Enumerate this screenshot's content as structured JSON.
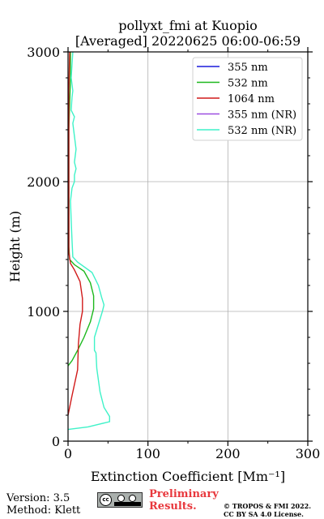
{
  "title_line1": "pollyxt_fmi at Kuopio",
  "title_line2": "[Averaged] 20220625 06:00-06:59",
  "footer": {
    "version": "Version: 3.5",
    "method": "Method: Klett",
    "preliminary": [
      "Preliminary",
      "Results."
    ],
    "copyright": [
      "© TROPOS & FMI 2022.",
      "CC BY SA 4.0 License."
    ]
  },
  "colors": {
    "355 nm": "#1a1adb",
    "532 nm": "#1db81d",
    "1064 nm": "#d11a1a",
    "355 nm (NR)": "#9b4de0",
    "532 nm (NR)": "#3ff2c8",
    "grid": "#b0b0b0"
  },
  "chart_data": {
    "type": "line",
    "xlabel": "Extinction Coefficient [Mm⁻¹]",
    "ylabel": "Height (m)",
    "xlim": [
      0,
      300
    ],
    "ylim": [
      0,
      3000
    ],
    "xticks": [
      0,
      100,
      200,
      300
    ],
    "yticks": [
      0,
      1000,
      2000,
      3000
    ],
    "grid": true,
    "legend_position": "top-right",
    "series": [
      {
        "name": "355 nm",
        "points": []
      },
      {
        "name": "532 nm",
        "points": [
          [
            0,
            580
          ],
          [
            5,
            620
          ],
          [
            12,
            700
          ],
          [
            20,
            800
          ],
          [
            28,
            920
          ],
          [
            32,
            1020
          ],
          [
            32,
            1120
          ],
          [
            28,
            1220
          ],
          [
            20,
            1310
          ],
          [
            8,
            1360
          ],
          [
            2,
            1400
          ],
          [
            1,
            1500
          ],
          [
            1,
            1800
          ],
          [
            1,
            2100
          ],
          [
            1,
            2400
          ],
          [
            2,
            2600
          ],
          [
            3,
            2800
          ],
          [
            3,
            3000
          ]
        ]
      },
      {
        "name": "1064 nm",
        "points": [
          [
            0,
            200
          ],
          [
            5,
            350
          ],
          [
            12,
            550
          ],
          [
            13,
            750
          ],
          [
            15,
            900
          ],
          [
            18,
            1000
          ],
          [
            18,
            1100
          ],
          [
            15,
            1230
          ],
          [
            8,
            1320
          ],
          [
            3,
            1370
          ],
          [
            1,
            1450
          ],
          [
            1,
            1700
          ],
          [
            1,
            2000
          ],
          [
            1,
            2400
          ],
          [
            1,
            2700
          ],
          [
            2,
            3000
          ]
        ]
      },
      {
        "name": "355 nm (NR)",
        "points": []
      },
      {
        "name": "532 nm (NR)",
        "points": [
          [
            0,
            90
          ],
          [
            25,
            110
          ],
          [
            52,
            150
          ],
          [
            52,
            190
          ],
          [
            45,
            260
          ],
          [
            40,
            380
          ],
          [
            36,
            560
          ],
          [
            35,
            680
          ],
          [
            33,
            700
          ],
          [
            33,
            800
          ],
          [
            38,
            900
          ],
          [
            43,
            1000
          ],
          [
            45,
            1050
          ],
          [
            42,
            1110
          ],
          [
            38,
            1200
          ],
          [
            30,
            1300
          ],
          [
            12,
            1380
          ],
          [
            6,
            1420
          ],
          [
            5,
            1550
          ],
          [
            4,
            1700
          ],
          [
            3,
            1850
          ],
          [
            5,
            1950
          ],
          [
            8,
            2000
          ],
          [
            8,
            2050
          ],
          [
            10,
            2100
          ],
          [
            8,
            2150
          ],
          [
            10,
            2250
          ],
          [
            8,
            2350
          ],
          [
            6,
            2450
          ],
          [
            8,
            2500
          ],
          [
            4,
            2550
          ],
          [
            5,
            2650
          ],
          [
            6,
            2700
          ],
          [
            4,
            2800
          ],
          [
            5,
            2900
          ],
          [
            6,
            3000
          ]
        ]
      }
    ]
  }
}
